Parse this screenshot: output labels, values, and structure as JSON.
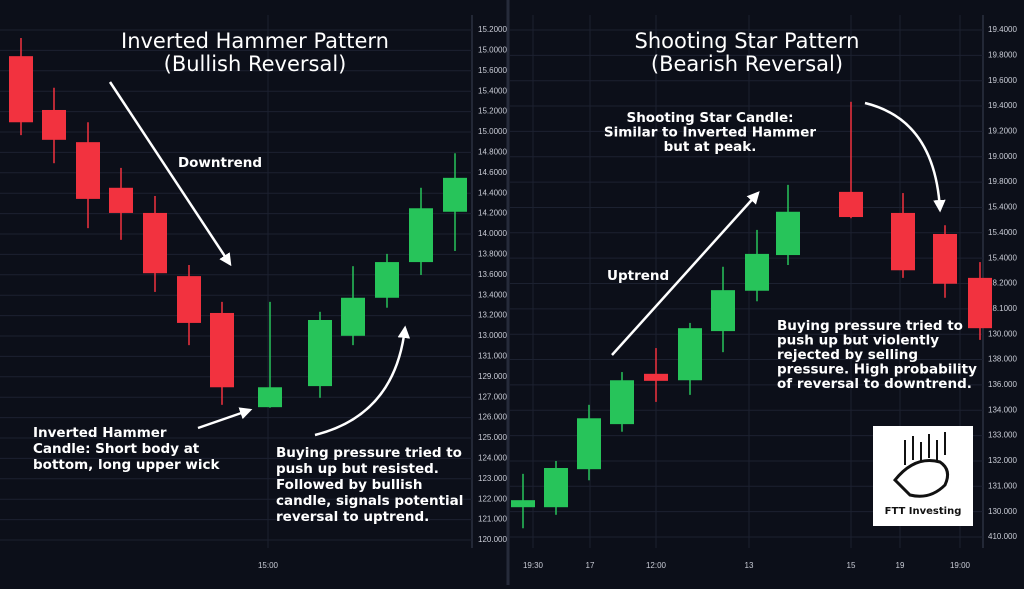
{
  "chart_data": [
    {
      "type": "candlestick",
      "title": "Inverted Hammer Pattern",
      "subtitle": "(Bullish Reversal)",
      "ylim": [
        0,
        100
      ],
      "y_axis_labels": [
        "15.2000",
        "15.0000",
        "15.6000",
        "15.4000",
        "15.2000",
        "15.0000",
        "14.8000",
        "14.6000",
        "14.4000",
        "14.2000",
        "14.0000",
        "13.8000",
        "13.6000",
        "13.4000",
        "13.2000",
        "13.0000",
        "131.000",
        "129.000",
        "127.000",
        "126.000",
        "125.000",
        "124.000",
        "123.000",
        "122.000",
        "121.000",
        "120.000"
      ],
      "x_labels": [
        "15:00"
      ],
      "up_color": "#27c45a",
      "down_color": "#f2323f",
      "open": [
        90.4,
        81.2,
        75.7,
        67.9,
        63.6,
        52.8,
        46.5,
        30.4,
        34.0,
        42.6,
        49.1,
        55.2,
        63.8
      ],
      "high": [
        93.5,
        85.0,
        79.1,
        71.3,
        66.5,
        54.7,
        48.4,
        48.4,
        46.7,
        54.5,
        56.6,
        67.9,
        73.8
      ],
      "low": [
        76.9,
        72.1,
        61.0,
        59.0,
        50.1,
        41.0,
        30.8,
        30.3,
        32.0,
        41.0,
        47.4,
        53.0,
        57.1
      ],
      "close": [
        79.1,
        76.1,
        66.0,
        63.6,
        53.3,
        44.8,
        33.8,
        33.8,
        45.3,
        49.1,
        55.2,
        64.4,
        69.6
      ],
      "annotations": [
        {
          "lines": [
            "Downtrend"
          ]
        },
        {
          "lines": [
            "Inverted Hammer",
            "Candle: Short body at",
            "bottom, long upper wick"
          ]
        },
        {
          "lines": [
            "Buying pressure tried to",
            "push up but resisted.",
            "Followed by bullish",
            "candle, signals potential",
            "reversal to uptrend."
          ]
        }
      ]
    },
    {
      "type": "candlestick",
      "title": "Shooting Star Pattern",
      "subtitle": "(Bearish Reversal)",
      "ylim": [
        0,
        100
      ],
      "y_axis_labels": [
        "19.4000",
        "19.8000",
        "19.6000",
        "19.4000",
        "19.2000",
        "19.0000",
        "19.8000",
        "15.4000",
        "15.4000",
        "15.4000",
        "18.2000",
        "18.1000",
        "130.000",
        "138.000",
        "136.000",
        "134.000",
        "133.000",
        "132.000",
        "131.000",
        "130.000",
        "410.000"
      ],
      "x_labels": [
        "19:30",
        "17",
        "12:00",
        "13",
        "15",
        "19",
        "19:00"
      ],
      "up_color": "#27c45a",
      "down_color": "#f2323f",
      "open": [
        13.3,
        13.3,
        19.8,
        27.5,
        36.1,
        35.0,
        43.4,
        50.3,
        56.4,
        67.2,
        63.6,
        60.0,
        52.5
      ],
      "high": [
        19.0,
        21.2,
        30.8,
        36.4,
        40.5,
        44.8,
        54.4,
        60.7,
        68.4,
        82.6,
        67.0,
        61.5,
        55.2
      ],
      "low": [
        9.7,
        12.0,
        17.9,
        26.2,
        31.3,
        32.5,
        39.8,
        48.5,
        54.7,
        62.7,
        52.5,
        49.1,
        41.9
      ],
      "close": [
        14.5,
        20.0,
        28.5,
        35.0,
        34.9,
        43.9,
        50.4,
        56.6,
        63.8,
        62.9,
        53.8,
        51.5,
        43.9
      ],
      "annotations": [
        {
          "lines": [
            "Shooting Star Candle:",
            "Similar to Inverted Hammer",
            "but at peak."
          ]
        },
        {
          "lines": [
            "Uptrend"
          ]
        },
        {
          "lines": [
            "Buying pressure tried to",
            "push up but violently",
            "rejected by selling",
            "pressure. High probability",
            "of reversal to downtrend."
          ]
        }
      ]
    }
  ],
  "logo": {
    "text": "FTT Investing"
  }
}
